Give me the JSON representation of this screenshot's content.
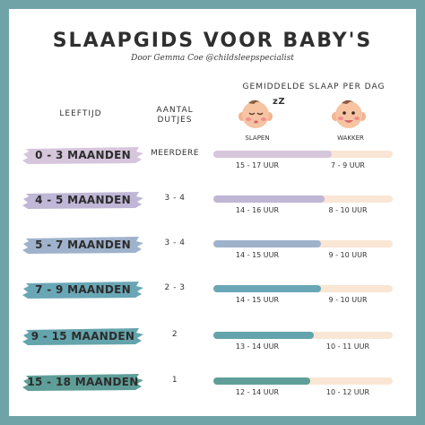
{
  "title": "SLAAPGIDS VOOR BABY'S",
  "subtitle": "Door Gemma Coe @childsleepspecialist",
  "headers": {
    "sleep": "GEMIDDELDE SLAAP PER DAG",
    "age": "LEEFTIJD",
    "naps_line1": "AANTAL",
    "naps_line2": "DUTJES",
    "asleep": "SLAPEN",
    "awake": "WAKKER",
    "zzz": "zZ"
  },
  "colors": {
    "frame": "#6fa3a8",
    "track": "#fae6d4"
  },
  "rows": [
    {
      "age": "0 - 3 MAANDEN",
      "naps": "MEERDERE",
      "sleep": "15 - 17 UUR",
      "awake": "7 - 9 UUR",
      "sleep_fraction": 0.66,
      "color": "#d6c6dc"
    },
    {
      "age": "4 - 5 MAANDEN",
      "naps": "3 - 4",
      "sleep": "14 - 16 UUR",
      "awake": "8 - 10 UUR",
      "sleep_fraction": 0.62,
      "color": "#c0b6d6"
    },
    {
      "age": "5 - 7 MAANDEN",
      "naps": "3 - 4",
      "sleep": "14 - 15 UUR",
      "awake": "9 - 10 UUR",
      "sleep_fraction": 0.6,
      "color": "#9fb2cc"
    },
    {
      "age": "7 - 9 MAANDEN",
      "naps": "2 - 3",
      "sleep": "14 - 15 UUR",
      "awake": "9 - 10 UUR",
      "sleep_fraction": 0.6,
      "color": "#6aa7b6"
    },
    {
      "age": "9 - 15 MAANDEN",
      "naps": "2",
      "sleep": "13 - 14 UUR",
      "awake": "10 - 11 UUR",
      "sleep_fraction": 0.56,
      "color": "#64a4ac"
    },
    {
      "age": "15 - 18 MAANDEN",
      "naps": "1",
      "sleep": "12 - 14 UUR",
      "awake": "10 - 12 UUR",
      "sleep_fraction": 0.54,
      "color": "#5f9e98"
    }
  ]
}
